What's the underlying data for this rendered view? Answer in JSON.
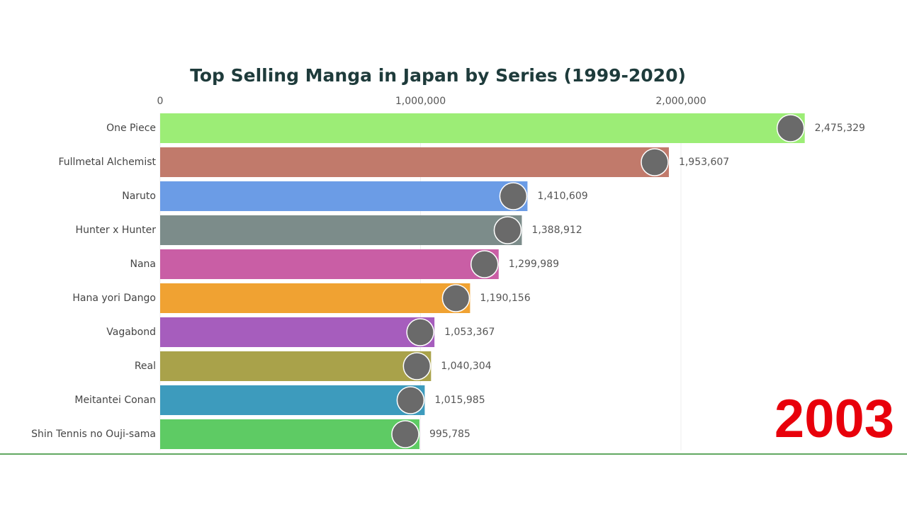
{
  "chart_data": {
    "type": "bar",
    "orientation": "horizontal",
    "title": "Top Selling Manga in Japan by Series (1999-2020)",
    "categories": [
      "One Piece",
      "Fullmetal Alchemist",
      "Naruto",
      "Hunter x Hunter",
      "Nana",
      "Hana yori Dango",
      "Vagabond",
      "Real",
      "Meitantei Conan",
      "Shin Tennis no Ouji-sama"
    ],
    "values": [
      2475329,
      1953607,
      1410609,
      1388912,
      1299989,
      1190156,
      1053367,
      1040304,
      1015985,
      995785
    ],
    "value_labels": [
      "2,475,329",
      "1,953,607",
      "1,410,609",
      "1,388,912",
      "1,299,989",
      "1,190,156",
      "1,053,367",
      "1,040,304",
      "1,015,985",
      "995,785"
    ],
    "colors": [
      "#9ced76",
      "#c17a6b",
      "#6b9ce6",
      "#7c8c8a",
      "#c95ea5",
      "#f0a232",
      "#a65dbd",
      "#a9a24a",
      "#3d9bbd",
      "#5ecb64"
    ],
    "xlim": [
      0,
      2800000
    ],
    "xticks": [
      0,
      {
        "value": 1000000,
        "label": "1,000,000"
      },
      {
        "value": 2000000,
        "label": "2,000,000"
      }
    ],
    "grid": true,
    "annotation": "2003"
  }
}
